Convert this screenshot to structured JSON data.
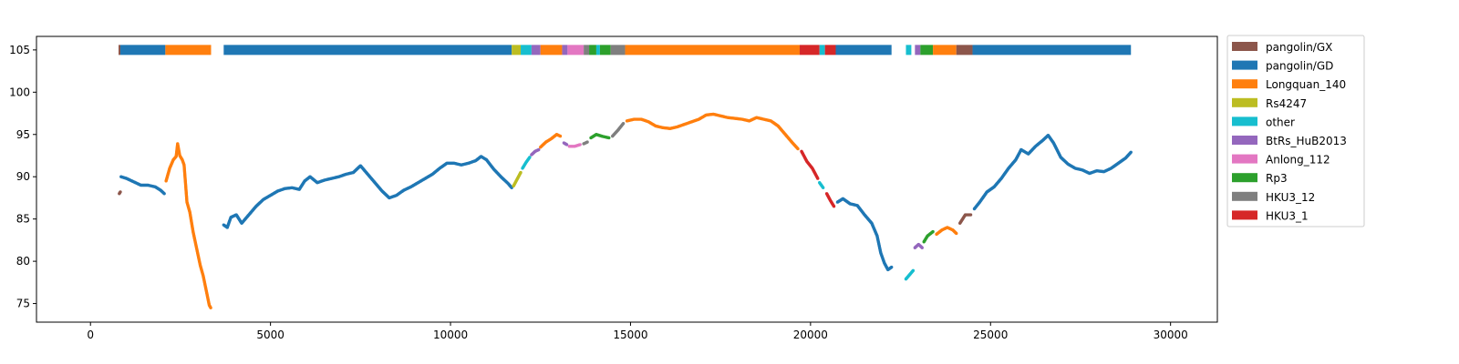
{
  "chart_data": {
    "type": "scatter",
    "title": "",
    "xlabel": "",
    "ylabel": "",
    "xlim": [
      -1500,
      31300
    ],
    "ylim": [
      72.8,
      106.6
    ],
    "x_ticks": [
      0,
      5000,
      10000,
      15000,
      20000,
      25000,
      30000
    ],
    "x_tick_labels": [
      "0",
      "5000",
      "10000",
      "15000",
      "20000",
      "25000",
      "30000"
    ],
    "y_ticks": [
      75,
      80,
      85,
      90,
      95,
      100,
      105
    ],
    "y_tick_labels": [
      "75",
      "80",
      "85",
      "90",
      "95",
      "100",
      "105"
    ],
    "grid": false,
    "legend_position": "outside-top-right",
    "colors": {
      "pangolin/GX": "#8c564b",
      "pangolin/GD": "#1f77b4",
      "Longquan_140": "#ff7f0e",
      "Rs4247": "#bcbd22",
      "other": "#17becf",
      "BtRs_HuB2013": "#9467bd",
      "Anlong_112": "#e377c2",
      "Rp3": "#2ca02c",
      "HKU3_12": "#7f7f7f",
      "HKU3_1": "#d62728"
    },
    "legend": [
      "pangolin/GX",
      "pangolin/GD",
      "Longquan_140",
      "Rs4247",
      "other",
      "BtRs_HuB2013",
      "Anlong_112",
      "Rp3",
      "HKU3_12",
      "HKU3_1"
    ],
    "bar_y": 105,
    "bar_segments": [
      {
        "x0": 780,
        "x1": 830,
        "series": "pangolin/GX"
      },
      {
        "x0": 830,
        "x1": 2080,
        "series": "pangolin/GD"
      },
      {
        "x0": 2080,
        "x1": 3350,
        "series": "Longquan_140"
      },
      {
        "x0": 3700,
        "x1": 11700,
        "series": "pangolin/GD"
      },
      {
        "x0": 11700,
        "x1": 11950,
        "series": "Rs4247"
      },
      {
        "x0": 11950,
        "x1": 12250,
        "series": "other"
      },
      {
        "x0": 12250,
        "x1": 12500,
        "series": "BtRs_HuB2013"
      },
      {
        "x0": 12500,
        "x1": 13100,
        "series": "Longquan_140"
      },
      {
        "x0": 13100,
        "x1": 13250,
        "series": "BtRs_HuB2013"
      },
      {
        "x0": 13250,
        "x1": 13700,
        "series": "Anlong_112"
      },
      {
        "x0": 13700,
        "x1": 13850,
        "series": "HKU3_12"
      },
      {
        "x0": 13850,
        "x1": 14050,
        "series": "Rp3"
      },
      {
        "x0": 14050,
        "x1": 14150,
        "series": "other"
      },
      {
        "x0": 14150,
        "x1": 14450,
        "series": "Rp3"
      },
      {
        "x0": 14450,
        "x1": 14850,
        "series": "HKU3_12"
      },
      {
        "x0": 14850,
        "x1": 19700,
        "series": "Longquan_140"
      },
      {
        "x0": 19700,
        "x1": 20250,
        "series": "HKU3_1"
      },
      {
        "x0": 20250,
        "x1": 20400,
        "series": "other"
      },
      {
        "x0": 20400,
        "x1": 20700,
        "series": "HKU3_1"
      },
      {
        "x0": 20700,
        "x1": 22250,
        "series": "pangolin/GD"
      },
      {
        "x0": 22650,
        "x1": 22800,
        "series": "other"
      },
      {
        "x0": 22900,
        "x1": 23050,
        "series": "BtRs_HuB2013"
      },
      {
        "x0": 23050,
        "x1": 23400,
        "series": "Rp3"
      },
      {
        "x0": 23400,
        "x1": 24050,
        "series": "Longquan_140"
      },
      {
        "x0": 24050,
        "x1": 24500,
        "series": "pangolin/GX"
      },
      {
        "x0": 24500,
        "x1": 28900,
        "series": "pangolin/GD"
      }
    ],
    "segments": [
      {
        "series": "pangolin/GX",
        "points": [
          [
            800,
            88.0
          ],
          [
            830,
            88.2
          ]
        ]
      },
      {
        "series": "pangolin/GD",
        "points": [
          [
            850,
            90.0
          ],
          [
            1000,
            89.8
          ],
          [
            1200,
            89.4
          ],
          [
            1400,
            89.0
          ],
          [
            1600,
            89.0
          ],
          [
            1800,
            88.8
          ],
          [
            1950,
            88.4
          ],
          [
            2050,
            88.0
          ]
        ]
      },
      {
        "series": "Longquan_140",
        "points": [
          [
            2100,
            89.5
          ],
          [
            2200,
            91.0
          ],
          [
            2300,
            92.0
          ],
          [
            2380,
            92.4
          ],
          [
            2420,
            93.9
          ],
          [
            2480,
            92.5
          ],
          [
            2550,
            92.0
          ],
          [
            2600,
            91.4
          ],
          [
            2680,
            87.0
          ],
          [
            2760,
            85.8
          ],
          [
            2850,
            83.5
          ],
          [
            2950,
            81.5
          ],
          [
            3050,
            79.5
          ],
          [
            3130,
            78.3
          ],
          [
            3300,
            74.8
          ],
          [
            3340,
            74.5
          ]
        ]
      },
      {
        "series": "pangolin/GD",
        "points": [
          [
            3700,
            84.3
          ],
          [
            3800,
            84.0
          ],
          [
            3900,
            85.2
          ],
          [
            4050,
            85.5
          ],
          [
            4200,
            84.5
          ],
          [
            4400,
            85.5
          ],
          [
            4600,
            86.5
          ],
          [
            4800,
            87.3
          ],
          [
            5000,
            87.8
          ],
          [
            5200,
            88.3
          ],
          [
            5400,
            88.6
          ],
          [
            5600,
            88.7
          ],
          [
            5800,
            88.5
          ],
          [
            5950,
            89.5
          ],
          [
            6100,
            90.0
          ],
          [
            6300,
            89.3
          ],
          [
            6500,
            89.6
          ],
          [
            6700,
            89.8
          ],
          [
            6900,
            90.0
          ],
          [
            7100,
            90.3
          ],
          [
            7300,
            90.5
          ],
          [
            7500,
            91.3
          ],
          [
            7700,
            90.3
          ],
          [
            7900,
            89.3
          ],
          [
            8100,
            88.3
          ],
          [
            8300,
            87.5
          ],
          [
            8500,
            87.8
          ],
          [
            8700,
            88.4
          ],
          [
            8900,
            88.8
          ],
          [
            9100,
            89.3
          ],
          [
            9300,
            89.8
          ],
          [
            9500,
            90.3
          ],
          [
            9700,
            91.0
          ],
          [
            9900,
            91.6
          ],
          [
            10100,
            91.6
          ],
          [
            10300,
            91.4
          ],
          [
            10500,
            91.6
          ],
          [
            10700,
            91.9
          ],
          [
            10850,
            92.4
          ],
          [
            11000,
            92.0
          ],
          [
            11200,
            90.9
          ],
          [
            11400,
            90.0
          ],
          [
            11600,
            89.2
          ],
          [
            11700,
            88.7
          ]
        ]
      },
      {
        "series": "Rs4247",
        "points": [
          [
            11750,
            88.9
          ],
          [
            11850,
            89.7
          ],
          [
            11950,
            90.5
          ]
        ]
      },
      {
        "series": "other",
        "points": [
          [
            12000,
            91.0
          ],
          [
            12100,
            91.7
          ],
          [
            12200,
            92.3
          ]
        ]
      },
      {
        "series": "BtRs_HuB2013",
        "points": [
          [
            12250,
            92.6
          ],
          [
            12350,
            93.0
          ],
          [
            12450,
            93.2
          ]
        ]
      },
      {
        "series": "Longquan_140",
        "points": [
          [
            12500,
            93.5
          ],
          [
            12650,
            94.1
          ],
          [
            12800,
            94.5
          ],
          [
            12950,
            95.0
          ],
          [
            13050,
            94.8
          ]
        ]
      },
      {
        "series": "BtRs_HuB2013",
        "points": [
          [
            13150,
            94.0
          ],
          [
            13230,
            93.8
          ]
        ]
      },
      {
        "series": "Anlong_112",
        "points": [
          [
            13300,
            93.6
          ],
          [
            13450,
            93.6
          ],
          [
            13600,
            93.8
          ]
        ]
      },
      {
        "series": "HKU3_12",
        "points": [
          [
            13700,
            93.9
          ],
          [
            13800,
            94.1
          ]
        ]
      },
      {
        "series": "Rp3",
        "points": [
          [
            13900,
            94.6
          ],
          [
            14050,
            95.0
          ],
          [
            14200,
            94.8
          ],
          [
            14400,
            94.6
          ]
        ]
      },
      {
        "series": "HKU3_12",
        "points": [
          [
            14500,
            94.8
          ],
          [
            14650,
            95.5
          ],
          [
            14800,
            96.3
          ]
        ]
      },
      {
        "series": "Longquan_140",
        "points": [
          [
            14900,
            96.6
          ],
          [
            15100,
            96.8
          ],
          [
            15300,
            96.8
          ],
          [
            15500,
            96.5
          ],
          [
            15700,
            96.0
          ],
          [
            15900,
            95.8
          ],
          [
            16100,
            95.7
          ],
          [
            16300,
            95.9
          ],
          [
            16500,
            96.2
          ],
          [
            16700,
            96.5
          ],
          [
            16900,
            96.8
          ],
          [
            17100,
            97.3
          ],
          [
            17300,
            97.4
          ],
          [
            17500,
            97.2
          ],
          [
            17700,
            97.0
          ],
          [
            17900,
            96.9
          ],
          [
            18100,
            96.8
          ],
          [
            18300,
            96.6
          ],
          [
            18500,
            97.0
          ],
          [
            18700,
            96.8
          ],
          [
            18900,
            96.6
          ],
          [
            19100,
            96.0
          ],
          [
            19300,
            95.0
          ],
          [
            19500,
            94.0
          ],
          [
            19650,
            93.3
          ]
        ]
      },
      {
        "series": "HKU3_1",
        "points": [
          [
            19750,
            93.0
          ],
          [
            19900,
            91.8
          ],
          [
            20050,
            91.0
          ],
          [
            20200,
            89.8
          ]
        ]
      },
      {
        "series": "other",
        "points": [
          [
            20250,
            89.3
          ],
          [
            20350,
            88.7
          ]
        ]
      },
      {
        "series": "HKU3_1",
        "points": [
          [
            20450,
            88.0
          ],
          [
            20550,
            87.2
          ],
          [
            20650,
            86.5
          ]
        ]
      },
      {
        "series": "pangolin/GD",
        "points": [
          [
            20750,
            87.0
          ],
          [
            20900,
            87.4
          ],
          [
            21100,
            86.8
          ],
          [
            21300,
            86.6
          ],
          [
            21500,
            85.5
          ],
          [
            21700,
            84.5
          ],
          [
            21850,
            83.0
          ],
          [
            21950,
            81.0
          ],
          [
            22050,
            79.8
          ],
          [
            22150,
            79.0
          ],
          [
            22250,
            79.3
          ]
        ]
      },
      {
        "series": "other",
        "points": [
          [
            22650,
            77.9
          ],
          [
            22750,
            78.4
          ],
          [
            22850,
            78.9
          ]
        ]
      },
      {
        "series": "BtRs_HuB2013",
        "points": [
          [
            22900,
            81.6
          ],
          [
            23000,
            82.0
          ],
          [
            23100,
            81.6
          ]
        ]
      },
      {
        "series": "Rp3",
        "points": [
          [
            23150,
            82.3
          ],
          [
            23250,
            83.0
          ],
          [
            23400,
            83.5
          ]
        ]
      },
      {
        "series": "Longquan_140",
        "points": [
          [
            23500,
            83.2
          ],
          [
            23650,
            83.7
          ],
          [
            23800,
            84.0
          ],
          [
            23950,
            83.7
          ],
          [
            24050,
            83.3
          ]
        ]
      },
      {
        "series": "pangolin/GX",
        "points": [
          [
            24150,
            84.5
          ],
          [
            24300,
            85.5
          ],
          [
            24450,
            85.5
          ]
        ]
      },
      {
        "series": "pangolin/GD",
        "points": [
          [
            24550,
            86.2
          ],
          [
            24700,
            87.0
          ],
          [
            24900,
            88.2
          ],
          [
            25100,
            88.8
          ],
          [
            25300,
            89.8
          ],
          [
            25500,
            91.0
          ],
          [
            25700,
            92.0
          ],
          [
            25850,
            93.2
          ],
          [
            26050,
            92.7
          ],
          [
            26250,
            93.6
          ],
          [
            26450,
            94.3
          ],
          [
            26600,
            94.9
          ],
          [
            26750,
            94.0
          ],
          [
            26950,
            92.3
          ],
          [
            27150,
            91.5
          ],
          [
            27350,
            91.0
          ],
          [
            27550,
            90.8
          ],
          [
            27750,
            90.4
          ],
          [
            27950,
            90.7
          ],
          [
            28150,
            90.6
          ],
          [
            28350,
            91.0
          ],
          [
            28550,
            91.6
          ],
          [
            28750,
            92.2
          ],
          [
            28900,
            92.9
          ]
        ]
      }
    ]
  }
}
